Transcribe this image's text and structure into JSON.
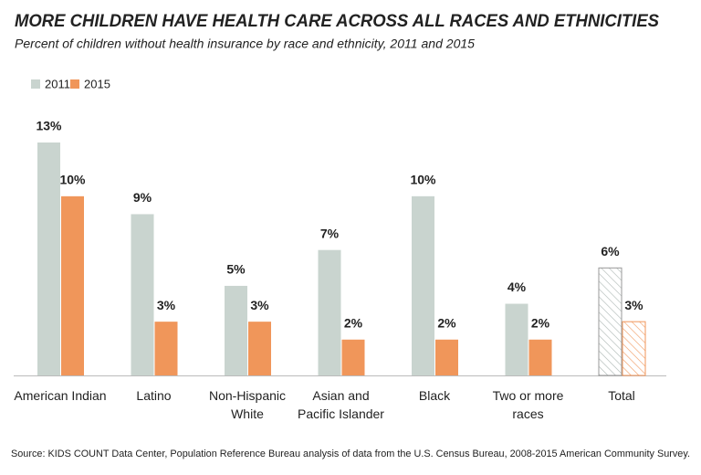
{
  "chart_data": {
    "type": "bar",
    "title": "MORE CHILDREN HAVE HEALTH CARE ACROSS ALL RACES AND ETHNICITIES",
    "subtitle": "Percent of children without health insurance by race and ethnicity, 2011 and 2015",
    "categories": [
      "American Indian",
      "Latino",
      "Non-Hispanic White",
      "Asian and Pacific Islander",
      "Black",
      "Two or more races",
      "Total"
    ],
    "series": [
      {
        "name": "2011",
        "color": "#c9d4cf",
        "values": [
          13,
          9,
          5,
          7,
          10,
          4,
          6
        ],
        "value_labels": [
          "13%",
          "9%",
          "5%",
          "7%",
          "10%",
          "4%",
          "6%"
        ]
      },
      {
        "name": "2015",
        "color": "#f0965a",
        "values": [
          10,
          3,
          3,
          2,
          2,
          2,
          3
        ],
        "value_labels": [
          "10%",
          "3%",
          "3%",
          "2%",
          "2%",
          "2%",
          "3%"
        ]
      }
    ],
    "ylim": [
      0,
      13
    ],
    "source": "Source: KIDS COUNT Data Center, Population Reference Bureau analysis of data from the U.S. Census Bureau, 2008-2015 American Community Survey."
  }
}
